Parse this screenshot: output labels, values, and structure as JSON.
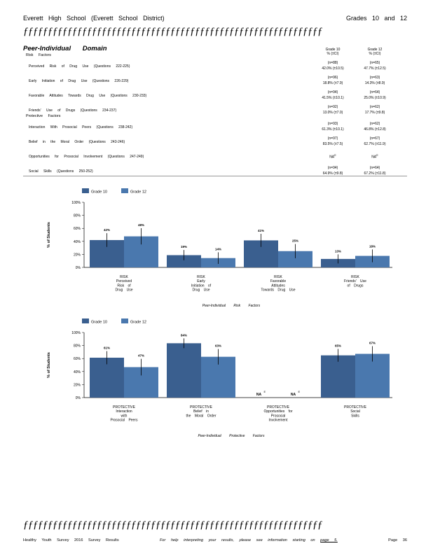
{
  "header": {
    "title": "Everett High School (Everett School District)",
    "grades": "Grades 10 and 12",
    "rule": "ƒƒƒƒƒƒƒƒƒƒƒƒƒƒƒƒƒƒƒƒƒƒƒƒƒƒƒƒƒƒƒƒƒƒƒƒƒƒƒƒƒƒƒƒƒƒƒƒƒƒƒƒƒƒƒƒƒƒƒƒƒ"
  },
  "domain": {
    "title": "Peer-Individual Domain",
    "col1": {
      "name": "Grade 10",
      "unit": "% (±CI)"
    },
    "col2": {
      "name": "Grade 12",
      "unit": "% (±CI)"
    },
    "risk_heading": "Risk Factors",
    "protective_heading": "Protective Factors",
    "risk_rows": [
      {
        "label": "Perceived Risk of Drug Use (Questions 222-225)",
        "n1": "(n=88)",
        "v1": "42.0% (±10.5)",
        "n2": "(n=65)",
        "v2": "47.7% (±12.5)"
      },
      {
        "label": "Early Initiation of Drug Use (Questions 226-229)",
        "n1": "(n=96)",
        "v1": "18.8% (±7.9)",
        "n2": "(n=63)",
        "v2": "14.3% (±8.9)"
      },
      {
        "label": "Favorable Attitudes Towards Drug Use (Questions 230-233)",
        "n1": "(n=94)",
        "v1": "41.5% (±10.1)",
        "n2": "(n=64)",
        "v2": "25.0% (±10.9)"
      },
      {
        "label": "Friends' Use of Drugs (Questions 234-237)",
        "n1": "(n=92)",
        "v1": "13.0% (±7.0)",
        "n2": "(n=62)",
        "v2": "17.7% (±9.8)"
      }
    ],
    "protective_rows": [
      {
        "label": "Interaction With Prosocial Peers (Questions 238-242)",
        "n1": "(n=93)",
        "v1": "61.3% (±10.1)",
        "n2": "(n=62)",
        "v2": "46.8% (±12.8)"
      },
      {
        "label": "Belief in the Moral Order (Questions 243-246)",
        "n1": "(n=97)",
        "v1": "83.5% (±7.5)",
        "n2": "(n=67)",
        "v2": "62.7% (±11.9)"
      },
      {
        "label": "Opportunities for Prosocial Involvement (Questions 247-249)",
        "n1": "",
        "v1": "NA",
        "n2": "",
        "v2": "NA"
      },
      {
        "label": "Social Skills (Questions 250-252)",
        "n1": "(n=94)",
        "v1": "64.9% (±9.8)",
        "n2": "(n=64)",
        "v2": "67.2% (±11.8)"
      }
    ],
    "na_note": "E"
  },
  "footer": {
    "left": "Healthy Youth Survey 2016 Survey Results",
    "middle": "For help interpreting your results, please see information starting on",
    "page_link": "page 5.",
    "page": "Page 36"
  },
  "colors": {
    "grade10": "#3a5f8f",
    "grade12": "#4a78ae"
  },
  "chart_data": [
    {
      "type": "bar",
      "title": "Peer-Individual Risk Factors",
      "ylabel": "% of Students",
      "ylim": [
        0,
        100
      ],
      "yticks": [
        "0%",
        "20%",
        "40%",
        "60%",
        "80%",
        "100%"
      ],
      "legend": "top",
      "categories": [
        [
          "RISK",
          "Perceived",
          "Risk of",
          "Drug Use"
        ],
        [
          "RISK",
          "Early",
          "Initiation of",
          "Drug Use"
        ],
        [
          "RISK",
          "Favorable",
          "Attitudes",
          "Towards Drug Use"
        ],
        [
          "RISK",
          "Friends' Use",
          "of Drugs"
        ]
      ],
      "series": [
        {
          "name": "Grade 10",
          "values": [
            42.0,
            18.8,
            41.5,
            13.0
          ],
          "ci": [
            10.5,
            7.9,
            10.1,
            7.0
          ],
          "labels": [
            "42%",
            "19%",
            "41%",
            "13%"
          ]
        },
        {
          "name": "Grade 12",
          "values": [
            47.7,
            14.3,
            25.0,
            17.7
          ],
          "ci": [
            12.5,
            8.9,
            10.9,
            9.8
          ],
          "labels": [
            "48%",
            "14%",
            "25%",
            "18%"
          ]
        }
      ]
    },
    {
      "type": "bar",
      "title": "Peer-Individual Protective Factors",
      "ylabel": "% of Students",
      "ylim": [
        0,
        100
      ],
      "yticks": [
        "0%",
        "20%",
        "40%",
        "60%",
        "80%",
        "100%"
      ],
      "legend": "top",
      "categories": [
        [
          "PROTECTIVE",
          "Interaction",
          "with",
          "Prosocial Peers"
        ],
        [
          "PROTECTIVE",
          "Belief in",
          "the Moral Order"
        ],
        [
          "PROTECTIVE",
          "Opportunities for",
          "Prosocial",
          "Involvement"
        ],
        [
          "PROTECTIVE",
          "Social",
          "Skills"
        ]
      ],
      "series": [
        {
          "name": "Grade 10",
          "values": [
            61.3,
            83.5,
            null,
            64.9
          ],
          "ci": [
            10.1,
            7.5,
            null,
            9.8
          ],
          "labels": [
            "61%",
            "84%",
            "NA",
            "65%"
          ]
        },
        {
          "name": "Grade 12",
          "values": [
            46.8,
            62.7,
            null,
            67.2
          ],
          "ci": [
            12.8,
            11.9,
            null,
            11.8
          ],
          "labels": [
            "47%",
            "63%",
            "NA",
            "67%"
          ]
        }
      ]
    }
  ]
}
